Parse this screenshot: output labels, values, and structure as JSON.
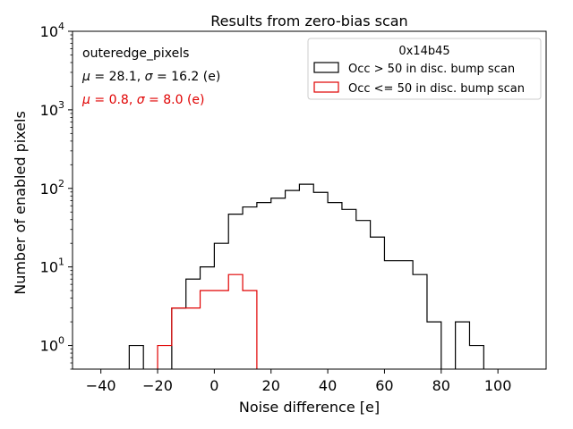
{
  "chart_data": {
    "type": "histogram",
    "title": "Results from zero-bias scan",
    "xlabel": "Noise difference [e]",
    "ylabel": "Number of enabled pixels",
    "xlim": [
      -50,
      117
    ],
    "ylim": [
      0.5,
      10000
    ],
    "yscale": "log",
    "x_ticks": [
      -40,
      -20,
      0,
      20,
      40,
      60,
      80,
      100
    ],
    "x_tick_labels": [
      "−40",
      "−20",
      "0",
      "20",
      "40",
      "60",
      "80",
      "100"
    ],
    "y_ticks": [
      1,
      10,
      100,
      1000,
      10000
    ],
    "y_tick_labels": [
      {
        "base": "10",
        "exp": "0"
      },
      {
        "base": "10",
        "exp": "1"
      },
      {
        "base": "10",
        "exp": "2"
      },
      {
        "base": "10",
        "exp": "3"
      },
      {
        "base": "10",
        "exp": "4"
      }
    ],
    "annotations": {
      "name": "outeredge_pixels",
      "stats_1": {
        "mu_symbol": "μ",
        "sigma_symbol": "σ",
        "mu": "28.1",
        "sigma": "16.2",
        "unit": "(e)"
      },
      "stats_2": {
        "mu_symbol": "μ",
        "sigma_symbol": "σ",
        "mu": "0.8",
        "sigma": "8.0",
        "unit": "(e)"
      }
    },
    "legend": {
      "title": "0x14b45",
      "placement": "top-right"
    },
    "series": [
      {
        "name": "Occ > 50 in disc. bump scan",
        "color": "#000000",
        "bin_edges": [
          -50,
          -45,
          -40,
          -35,
          -30,
          -25,
          -20,
          -15,
          -10,
          -5,
          0,
          5,
          10,
          15,
          20,
          25,
          30,
          35,
          40,
          45,
          50,
          55,
          60,
          65,
          70,
          75,
          80,
          85,
          90,
          95,
          100,
          105,
          110
        ],
        "counts": [
          0,
          0,
          0,
          0,
          1,
          0,
          0,
          3,
          7,
          10,
          20,
          47,
          58,
          66,
          75,
          94,
          113,
          89,
          66,
          54,
          39,
          24,
          12,
          12,
          8,
          2,
          0,
          2,
          1,
          0,
          0,
          0
        ]
      },
      {
        "name": "Occ <= 50 in disc. bump scan",
        "color": "#e00000",
        "bin_edges": [
          -50,
          -45,
          -40,
          -35,
          -30,
          -25,
          -20,
          -15,
          -10,
          -5,
          0,
          5,
          10,
          15,
          20
        ],
        "counts": [
          0,
          0,
          0,
          0,
          0,
          0,
          1,
          3,
          3,
          5,
          5,
          8,
          5,
          0
        ]
      }
    ]
  }
}
